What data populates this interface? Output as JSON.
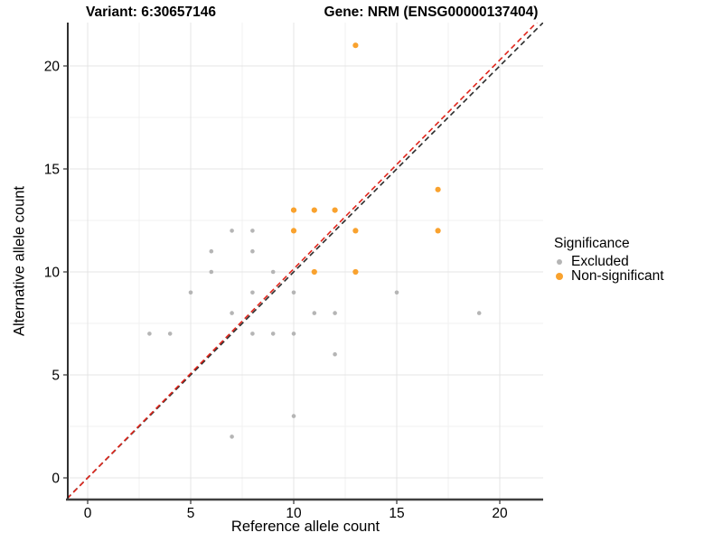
{
  "titles": {
    "variant": "Variant: 6:30657146",
    "gene": "Gene: NRM (ENSG00000137404)"
  },
  "axes": {
    "x": {
      "label": "Reference allele count",
      "ticks": [
        0,
        5,
        10,
        15,
        20
      ],
      "minor_ticks": [
        2.5,
        7.5,
        12.5,
        17.5
      ],
      "range": [
        -1,
        22.1
      ]
    },
    "y": {
      "label": "Alternative allele count",
      "ticks": [
        0,
        5,
        10,
        15,
        20
      ],
      "minor_ticks": [
        2.5,
        7.5,
        12.5,
        17.5
      ],
      "range": [
        -1.05,
        22.1
      ]
    }
  },
  "legend": {
    "title": "Significance",
    "items": [
      {
        "label": "Excluded",
        "color": "#b5b5b5"
      },
      {
        "label": "Non-significant",
        "color": "#f9a22e"
      }
    ]
  },
  "colors": {
    "excluded": "#b5b5b5",
    "non_significant": "#f9a22e",
    "identity_line": "#2b2b2b",
    "expected_line": "#e1251b",
    "grid_major": "#e4e4e4",
    "grid_minor": "#f1f1f1",
    "axis_line": "#404040",
    "tick_text": "#000000"
  },
  "chart_data": {
    "type": "scatter",
    "title": "",
    "xlabel": "Reference allele count",
    "ylabel": "Alternative allele count",
    "xlim": [
      -1,
      22.1
    ],
    "ylim": [
      -1.05,
      22.1
    ],
    "grid": true,
    "legend_position": "right",
    "series": [
      {
        "name": "Excluded",
        "color": "#b5b5b5",
        "size": "small",
        "points": [
          [
            3,
            7
          ],
          [
            4,
            7
          ],
          [
            5,
            9
          ],
          [
            6,
            10
          ],
          [
            6,
            11
          ],
          [
            7,
            2
          ],
          [
            7,
            8
          ],
          [
            7,
            12
          ],
          [
            8,
            7
          ],
          [
            8,
            9
          ],
          [
            8,
            11
          ],
          [
            8,
            12
          ],
          [
            9,
            7
          ],
          [
            9,
            10
          ],
          [
            10,
            3
          ],
          [
            10,
            7
          ],
          [
            10,
            9
          ],
          [
            11,
            8
          ],
          [
            12,
            6
          ],
          [
            12,
            8
          ],
          [
            15,
            9
          ],
          [
            19,
            8
          ]
        ]
      },
      {
        "name": "Non-significant",
        "color": "#f9a22e",
        "size": "large",
        "points": [
          [
            10,
            12
          ],
          [
            10,
            13
          ],
          [
            11,
            10
          ],
          [
            11,
            13
          ],
          [
            12,
            13
          ],
          [
            13,
            10
          ],
          [
            13,
            12
          ],
          [
            13,
            21
          ],
          [
            17,
            12
          ],
          [
            17,
            14
          ]
        ]
      }
    ],
    "lines": [
      {
        "name": "identity",
        "slope": 1.0,
        "intercept": 0,
        "style": "dashed",
        "color": "#2b2b2b"
      },
      {
        "name": "expected-ratio",
        "slope": 1.0145,
        "intercept": 0,
        "style": "dashed",
        "color": "#e1251b"
      }
    ]
  }
}
